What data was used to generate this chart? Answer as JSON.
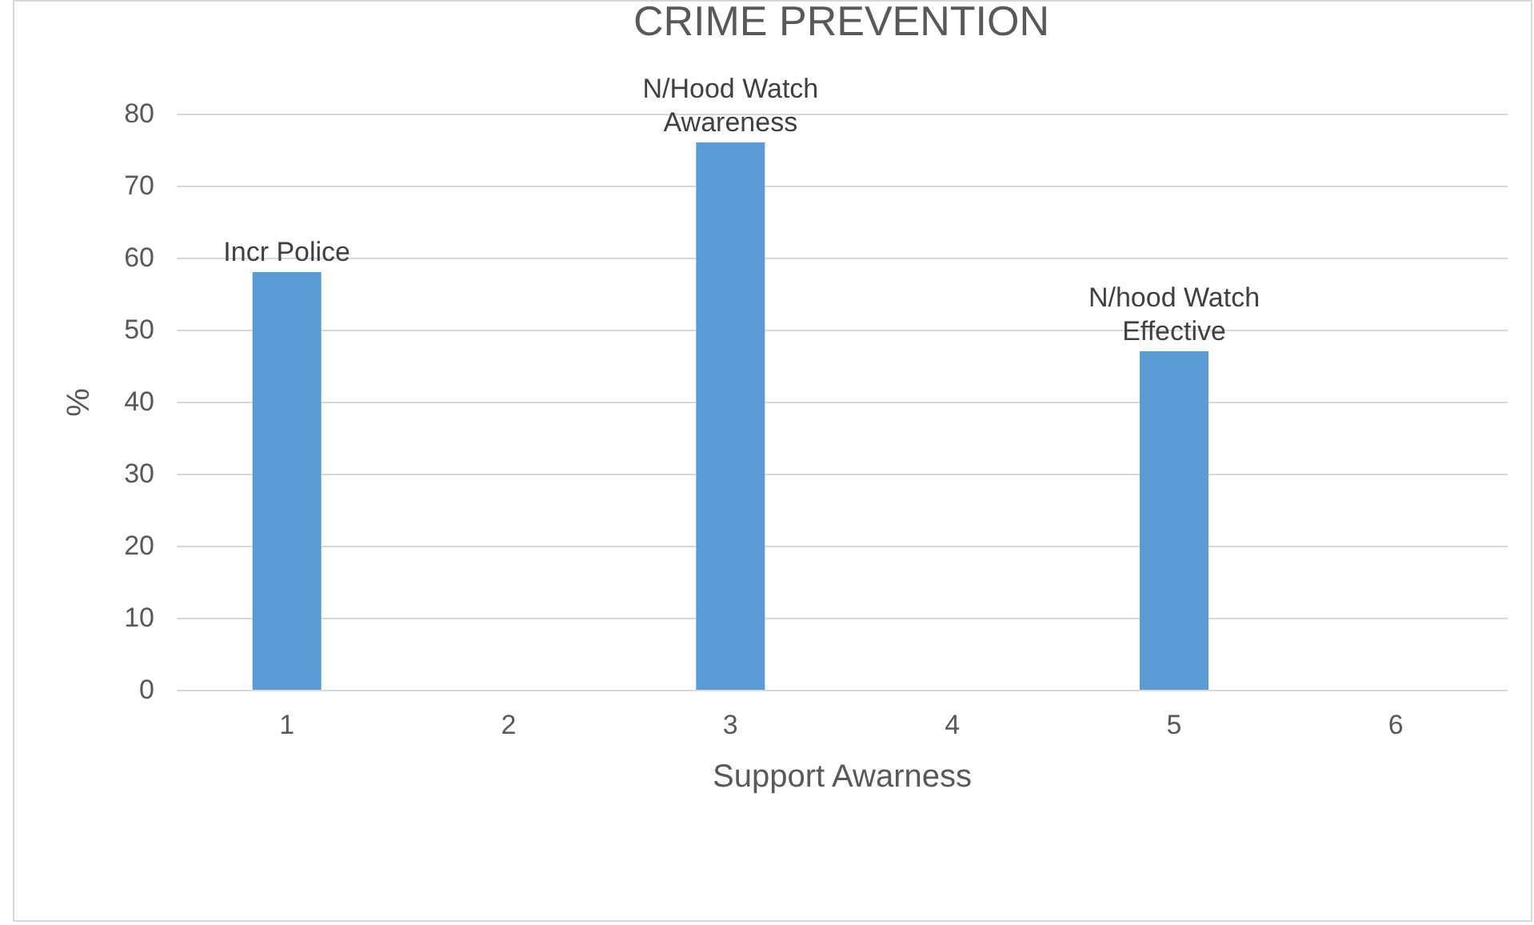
{
  "chart_data": {
    "type": "bar",
    "title": "CRIME PREVENTION",
    "xlabel": "Support Awarness",
    "ylabel": "%",
    "categories": [
      "1",
      "2",
      "3",
      "4",
      "5",
      "6"
    ],
    "series": [
      {
        "color": "#5b9bd5",
        "values": [
          58,
          null,
          76,
          null,
          47,
          null
        ]
      }
    ],
    "ylim": [
      0,
      80
    ],
    "yticks": [
      0,
      10,
      20,
      30,
      40,
      50,
      60,
      70,
      80
    ],
    "grid": "y",
    "annotations": [
      {
        "text": "Incr Police",
        "x": "1",
        "y": 58
      },
      {
        "text": "N/Hood Watch\nAwareness",
        "x": "3",
        "y": 76
      },
      {
        "text": "N/hood Watch\nEffective",
        "x": "5",
        "y": 47
      }
    ]
  }
}
